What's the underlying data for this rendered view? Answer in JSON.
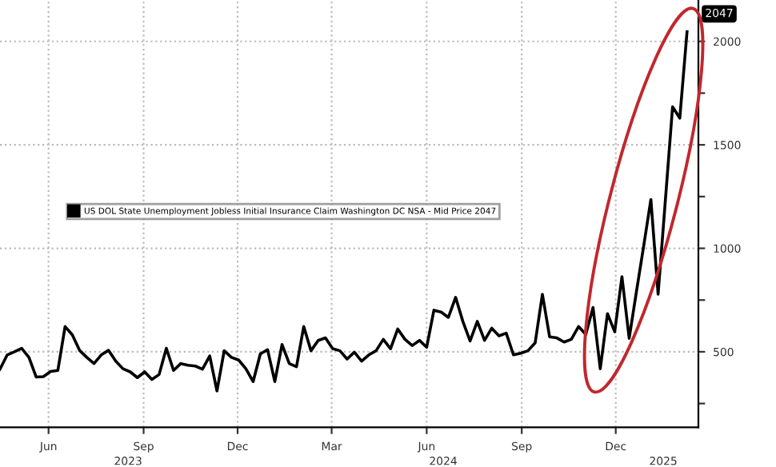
{
  "chart_data": {
    "type": "line",
    "x": [
      "2023-04-29",
      "2023-05-06",
      "2023-05-13",
      "2023-05-20",
      "2023-05-27",
      "2023-06-03",
      "2023-06-10",
      "2023-06-17",
      "2023-06-24",
      "2023-07-01",
      "2023-07-08",
      "2023-07-15",
      "2023-07-22",
      "2023-07-29",
      "2023-08-05",
      "2023-08-12",
      "2023-08-19",
      "2023-08-26",
      "2023-09-02",
      "2023-09-09",
      "2023-09-16",
      "2023-09-23",
      "2023-09-30",
      "2023-10-07",
      "2023-10-14",
      "2023-10-21",
      "2023-10-28",
      "2023-11-04",
      "2023-11-11",
      "2023-11-18",
      "2023-11-25",
      "2023-12-02",
      "2023-12-09",
      "2023-12-16",
      "2023-12-23",
      "2023-12-30",
      "2024-01-06",
      "2024-01-13",
      "2024-01-20",
      "2024-01-27",
      "2024-02-03",
      "2024-02-10",
      "2024-02-17",
      "2024-02-24",
      "2024-03-02",
      "2024-03-09",
      "2024-03-16",
      "2024-03-23",
      "2024-03-30",
      "2024-04-06",
      "2024-04-13",
      "2024-04-20",
      "2024-04-27",
      "2024-05-04",
      "2024-05-11",
      "2024-05-18",
      "2024-05-25",
      "2024-06-01",
      "2024-06-08",
      "2024-06-15",
      "2024-06-22",
      "2024-06-29",
      "2024-07-06",
      "2024-07-13",
      "2024-07-20",
      "2024-07-27",
      "2024-08-03",
      "2024-08-10",
      "2024-08-17",
      "2024-08-24",
      "2024-08-31",
      "2024-09-07",
      "2024-09-14",
      "2024-09-21",
      "2024-09-28",
      "2024-10-05",
      "2024-10-12",
      "2024-10-19",
      "2024-10-26",
      "2024-11-02",
      "2024-11-09",
      "2024-11-16",
      "2024-11-23",
      "2024-11-30",
      "2024-12-07",
      "2024-12-14",
      "2024-12-21",
      "2024-12-28",
      "2025-01-04",
      "2025-01-11",
      "2025-01-18",
      "2025-01-25",
      "2025-02-01",
      "2025-02-08",
      "2025-02-15",
      "2025-02-22"
    ],
    "series": [
      {
        "name": "US DOL State Unemployment Jobless Initial Insurance Claim Washington DC NSA - Mid Price 2047",
        "color": "#000000",
        "values": [
          416,
          485,
          500,
          517,
          473,
          378,
          380,
          405,
          410,
          622,
          582,
          507,
          473,
          443,
          485,
          507,
          455,
          418,
          403,
          375,
          403,
          366,
          390,
          517,
          410,
          443,
          435,
          431,
          416,
          480,
          311,
          505,
          473,
          460,
          418,
          356,
          490,
          510,
          356,
          535,
          443,
          428,
          622,
          505,
          555,
          567,
          515,
          505,
          465,
          498,
          455,
          485,
          505,
          560,
          515,
          610,
          560,
          530,
          555,
          522,
          701,
          692,
          666,
          763,
          647,
          552,
          647,
          555,
          614,
          577,
          590,
          485,
          493,
          505,
          543,
          778,
          572,
          567,
          547,
          560,
          622,
          584,
          714,
          418,
          684,
          597,
          863,
          565,
          790,
          1010,
          1236,
          778,
          1230,
          1684,
          1629,
          2047
        ]
      }
    ],
    "xlim": [
      "2023-04-29",
      "2025-03-05"
    ],
    "xticks": [
      {
        "value": "2023-06-15",
        "label": "Jun"
      },
      {
        "value": "2023-09-15",
        "label": "Sep"
      },
      {
        "value": "2023-12-15",
        "label": "Dec"
      },
      {
        "value": "2024-03-15",
        "label": "Mar"
      },
      {
        "value": "2024-06-15",
        "label": "Jun"
      },
      {
        "value": "2024-09-15",
        "label": "Sep"
      },
      {
        "value": "2024-12-15",
        "label": "Dec"
      }
    ],
    "x2lim": [
      "2023-04-29",
      "2025-03-05"
    ],
    "x2ticks": [
      {
        "value": "2023-08-31",
        "label": "2023"
      },
      {
        "value": "2024-07-01",
        "label": "2024"
      },
      {
        "value": "2025-01-30",
        "label": "2025"
      }
    ],
    "ylim": [
      135,
      2200
    ],
    "yticks": [
      {
        "value": 250,
        "label": null
      },
      500,
      {
        "value": 750,
        "label": null
      },
      1000,
      {
        "value": 1250,
        "label": null
      },
      1500,
      {
        "value": 1750,
        "label": null
      },
      2000
    ],
    "annotations": [
      {
        "text": "2047",
        "x": "2025-02-22",
        "y": 2047
      }
    ],
    "grid": true,
    "legend": "left",
    "line_style": "solid",
    "marker": "none"
  }
}
